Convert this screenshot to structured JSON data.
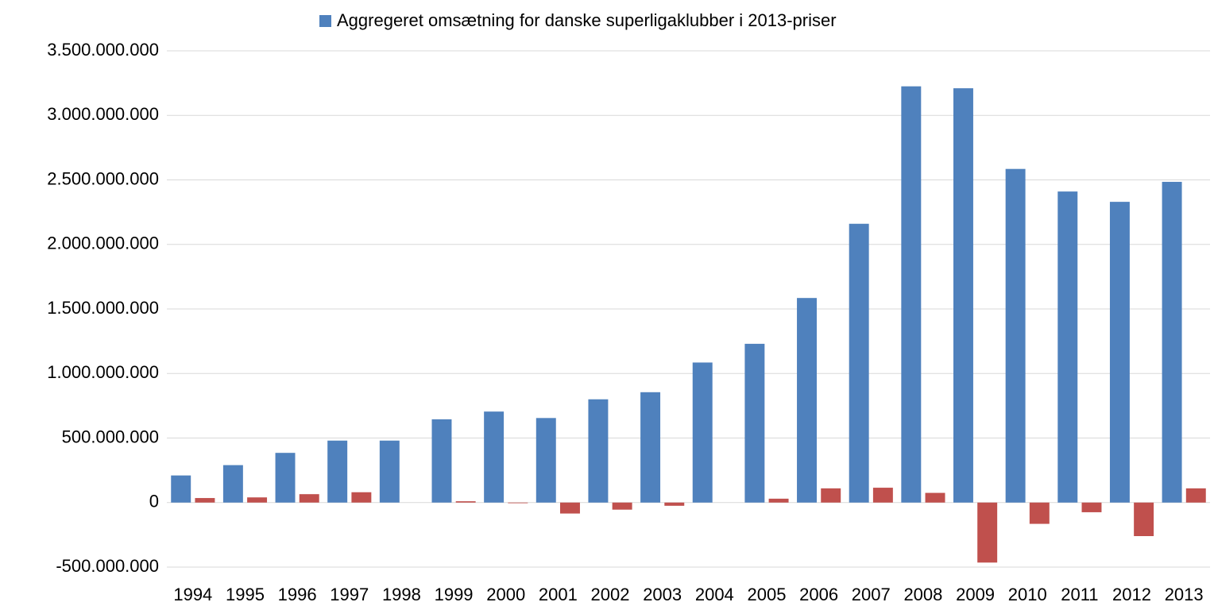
{
  "chart_data": {
    "type": "bar",
    "categories": [
      "1994",
      "1995",
      "1996",
      "1997",
      "1998",
      "1999",
      "2000",
      "2001",
      "2002",
      "2003",
      "2004",
      "2005",
      "2006",
      "2007",
      "2008",
      "2009",
      "2010",
      "2011",
      "2012",
      "2013"
    ],
    "series": [
      {
        "name": "Aggregeret omsætning for danske superligaklubber i 2013-priser",
        "color": "#4f81bd",
        "values": [
          210000000,
          290000000,
          385000000,
          480000000,
          480000000,
          645000000,
          705000000,
          655000000,
          800000000,
          855000000,
          1085000000,
          1230000000,
          1585000000,
          2160000000,
          3225000000,
          3210000000,
          2585000000,
          2410000000,
          2330000000,
          2485000000
        ]
      },
      {
        "color": "#c0504d",
        "values": [
          35000000,
          40000000,
          65000000,
          80000000,
          0,
          10000000,
          -5000000,
          -85000000,
          -55000000,
          -25000000,
          0,
          30000000,
          110000000,
          115000000,
          75000000,
          -465000000,
          -165000000,
          -75000000,
          -260000000,
          110000000
        ]
      }
    ],
    "ylim": [
      -500000000,
      3500000000
    ],
    "yticks": [
      {
        "value": -500000000,
        "label": "-500.000.000"
      },
      0,
      {
        "value": 500000000,
        "label": "500.000.000"
      },
      {
        "value": 1000000000,
        "label": "1.000.000.000"
      },
      {
        "value": 1500000000,
        "label": "1.500.000.000"
      },
      {
        "value": 2000000000,
        "label": "2.000.000.000"
      },
      {
        "value": 2500000000,
        "label": "2.500.000.000"
      },
      {
        "value": 3000000000,
        "label": "3.000.000.000"
      },
      {
        "value": 3500000000,
        "label": "3.500.000.000"
      }
    ],
    "grid": true,
    "legend": "top"
  }
}
